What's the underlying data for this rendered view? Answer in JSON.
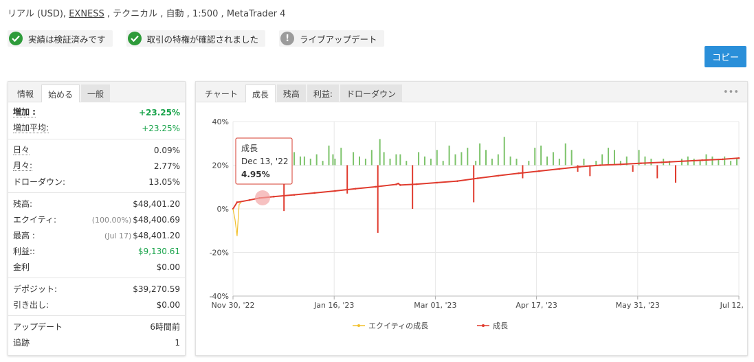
{
  "header": {
    "account_type": "リアル (USD), ",
    "broker": "EXNESS",
    "details": " , テクニカル , 自動 , 1:500 , MetaTrader 4"
  },
  "badges": [
    {
      "label": "実績は検証済みです",
      "icon": "check-icon"
    },
    {
      "label": "取引の特権が確認されました",
      "icon": "check-icon"
    },
    {
      "label": "ライブアップデート",
      "icon": "exclamation-icon"
    }
  ],
  "copy_button": "コピー",
  "left_panel": {
    "tabs": [
      "情報",
      "始める",
      "一般"
    ],
    "rows": {
      "gain": {
        "label": "増加 :",
        "value": "+23.25%"
      },
      "abs_gain": {
        "label": "増加平均:",
        "value": "+23.25%"
      },
      "daily": {
        "label": "日々",
        "value": "0.09%"
      },
      "monthly": {
        "label": "月々:",
        "value": "2.77%"
      },
      "drawdown": {
        "label": "ドローダウン:",
        "value": "13.05%"
      },
      "balance": {
        "label": "残高:",
        "value": "$48,401.20"
      },
      "equity": {
        "label": "エクイティ:",
        "note": "(100.00%)",
        "value": "$48,400.69"
      },
      "highest": {
        "label": "最高 :",
        "note": "(Jul 17)",
        "value": "$48,401.20"
      },
      "profit": {
        "label": "利益::",
        "value": "$9,130.61"
      },
      "interest": {
        "label": "金利",
        "value": "$0.00"
      },
      "deposits": {
        "label": "デポジット:",
        "value": "$39,270.59"
      },
      "withdrawals": {
        "label": "引き出し:",
        "value": "$0.00"
      },
      "updated": {
        "label": "アップデート",
        "value": "6時間前"
      },
      "tracking": {
        "label": "追跡",
        "value": "1"
      }
    }
  },
  "right_panel": {
    "tabs": [
      "チャート",
      "成長",
      "残高",
      "利益:",
      "ドローダウン"
    ],
    "menu_icon": "more-dots-icon"
  },
  "tooltip": {
    "series": "成長",
    "date": "Dec 13, '22",
    "value": "4.95%"
  },
  "colors": {
    "accent": "#2a8fd9",
    "growth_line": "#e03b2e",
    "equity_line": "#f2c12e",
    "bar_up": "#7dc36b",
    "bar_down": "#e03b2e",
    "positive": "#18a34a"
  },
  "chart_data": {
    "type": "line",
    "x_ticks": [
      "Nov 30, '22",
      "Jan 16, '23",
      "Mar 01, '23",
      "Apr 17, '23",
      "May 31, '23",
      "Jul 12, '23"
    ],
    "y_ticks": [
      "40%",
      "20%",
      "0%",
      "-20%",
      "-40%"
    ],
    "ylim": [
      -40,
      40
    ],
    "legend": [
      "エクイティの成長",
      "成長"
    ],
    "legend_position": "bottom",
    "series": [
      {
        "name": "成長",
        "points": [
          [
            0,
            0
          ],
          [
            2,
            3
          ],
          [
            8,
            4
          ],
          [
            13,
            4.95
          ],
          [
            20,
            5.6
          ],
          [
            30,
            6.4
          ],
          [
            40,
            7.3
          ],
          [
            50,
            8.2
          ],
          [
            60,
            9.2
          ],
          [
            70,
            10.1
          ],
          [
            80,
            11.2
          ],
          [
            81,
            11.6
          ],
          [
            82,
            10.9
          ],
          [
            90,
            11.3
          ],
          [
            100,
            12.0
          ],
          [
            110,
            12.7
          ],
          [
            120,
            14.0
          ],
          [
            130,
            15.2
          ],
          [
            140,
            16.3
          ],
          [
            150,
            17.3
          ],
          [
            160,
            18.3
          ],
          [
            170,
            19.3
          ],
          [
            180,
            20.0
          ],
          [
            190,
            20.4
          ],
          [
            200,
            20.9
          ],
          [
            210,
            21.3
          ],
          [
            220,
            21.8
          ],
          [
            230,
            22.3
          ],
          [
            240,
            22.7
          ],
          [
            248,
            23.25
          ]
        ]
      },
      {
        "name": "エクイティの成長",
        "points": [
          [
            0,
            0
          ],
          [
            1,
            -5
          ],
          [
            2,
            -12.5
          ],
          [
            3,
            2
          ],
          [
            4,
            3
          ]
        ]
      }
    ],
    "bar_series": {
      "x": [
        2,
        4,
        6,
        9,
        11,
        13,
        16,
        18,
        20,
        22,
        25,
        27,
        28,
        30,
        33,
        35,
        38,
        41,
        44,
        47,
        49,
        50,
        53,
        56,
        59,
        62,
        65,
        68,
        71,
        72,
        74,
        77,
        80,
        82,
        85,
        88,
        91,
        94,
        97,
        100,
        103,
        106,
        109,
        112,
        115,
        118,
        119,
        121,
        124,
        127,
        130,
        133,
        136,
        139,
        142,
        145,
        148,
        151,
        154,
        157,
        160,
        163,
        166,
        169,
        172,
        175,
        178,
        181,
        184,
        187,
        190,
        193,
        196,
        199,
        202,
        205,
        208,
        211,
        214,
        217,
        220,
        223,
        226,
        229,
        232,
        235,
        238,
        241,
        244,
        247
      ],
      "values": [
        8,
        4,
        5,
        3,
        7,
        6,
        3,
        2,
        6,
        5,
        -21,
        8,
        -3,
        6,
        4,
        4,
        3,
        5,
        2,
        9,
        5,
        3,
        8,
        -13,
        6,
        4,
        3,
        7,
        -31,
        12,
        6,
        3,
        5,
        5,
        2,
        -20,
        6,
        4,
        3,
        7,
        2,
        9,
        5,
        6,
        8,
        -17,
        2,
        10,
        7,
        3,
        5,
        13,
        4,
        3,
        -6,
        2,
        8,
        9,
        4,
        6,
        3,
        10,
        7,
        -3,
        3,
        -5,
        2,
        5,
        8,
        7,
        2,
        4,
        -3,
        7,
        4,
        3,
        -6,
        3,
        2,
        -8,
        3,
        4,
        3,
        2,
        5,
        4,
        3,
        4,
        2,
        3
      ]
    }
  }
}
